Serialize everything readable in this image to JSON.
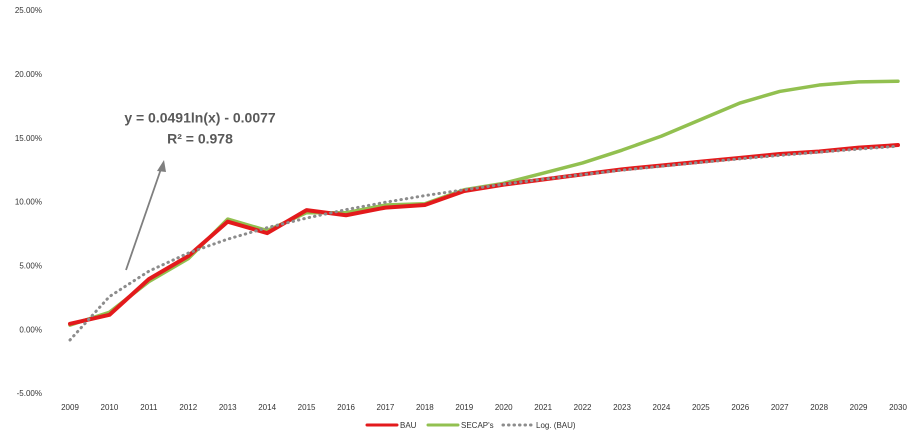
{
  "chart_data": {
    "type": "line",
    "categories": [
      "2009",
      "2010",
      "2011",
      "2012",
      "2013",
      "2014",
      "2015",
      "2016",
      "2017",
      "2018",
      "2019",
      "2020",
      "2021",
      "2022",
      "2023",
      "2024",
      "2025",
      "2026",
      "2027",
      "2028",
      "2029",
      "2030"
    ],
    "series": [
      {
        "name": "BAU",
        "color": "#e31a1c",
        "style": "solid",
        "values": [
          0.5,
          1.2,
          4.0,
          5.8,
          8.5,
          7.6,
          9.4,
          9.0,
          9.6,
          9.8,
          10.9,
          11.4,
          11.8,
          12.2,
          12.6,
          12.9,
          13.2,
          13.5,
          13.8,
          14.0,
          14.3,
          14.5
        ]
      },
      {
        "name": "SECAP's",
        "color": "#92c050",
        "style": "solid",
        "values": [
          0.4,
          1.4,
          3.8,
          5.6,
          8.7,
          7.8,
          9.2,
          9.2,
          9.8,
          9.9,
          11.0,
          11.5,
          12.3,
          13.1,
          14.1,
          15.2,
          16.5,
          17.8,
          18.7,
          19.2,
          19.45,
          19.5
        ]
      },
      {
        "name": "Log. (BAU)",
        "color": "#8c8c8c",
        "style": "dotted",
        "values": [
          -0.77,
          2.63,
          4.62,
          6.04,
          7.13,
          8.03,
          8.78,
          9.44,
          10.02,
          10.54,
          11.0,
          11.43,
          11.82,
          12.19,
          12.53,
          12.84,
          13.14,
          13.42,
          13.69,
          13.94,
          14.18,
          14.41
        ]
      }
    ],
    "ylim": [
      -5,
      25
    ],
    "yticks": [
      {
        "value": -5,
        "label": "-5.00%"
      },
      {
        "value": 0,
        "label": "0.00%"
      },
      {
        "value": 5,
        "label": "5.00%"
      },
      {
        "value": 10,
        "label": "10.00%"
      },
      {
        "value": 15,
        "label": "15.00%"
      },
      {
        "value": 20,
        "label": "20.00%"
      },
      {
        "value": 25,
        "label": "25.00%"
      }
    ],
    "grid": false,
    "legend": "bottom",
    "annotations": [
      "y = 0.0491ln(x) - 0.0077",
      "R² = 0.978"
    ]
  }
}
